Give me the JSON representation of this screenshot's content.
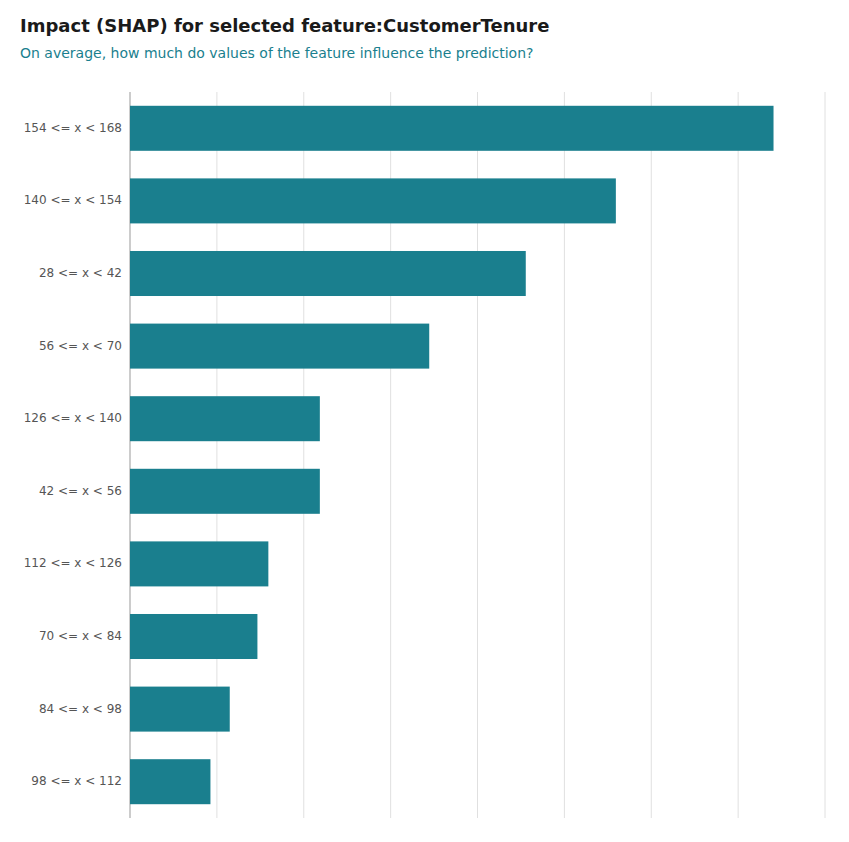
{
  "chart_data": {
    "type": "bar",
    "orientation": "horizontal",
    "title": "Impact (SHAP) for selected feature:CustomerTenure",
    "subtitle": "On average, how much do values of the feature influence the prediction?",
    "categories": [
      "154 <= x < 168",
      "140 <= x < 154",
      "28 <= x < 42",
      "56 <= x < 70",
      "126 <= x < 140",
      "42 <= x < 56",
      "112 <= x < 126",
      "70 <= x < 84",
      "84 <= x < 98",
      "98 <= x < 112"
    ],
    "values": [
      1.0,
      0.755,
      0.615,
      0.465,
      0.295,
      0.295,
      0.215,
      0.198,
      0.155,
      0.125
    ],
    "color": "#1a7f8e",
    "xlim": [
      0,
      1.08
    ],
    "xticks": [
      0.135,
      0.27,
      0.405,
      0.54,
      0.675,
      0.81,
      0.945,
      1.08
    ],
    "grid": true,
    "tick_labels": "y"
  }
}
